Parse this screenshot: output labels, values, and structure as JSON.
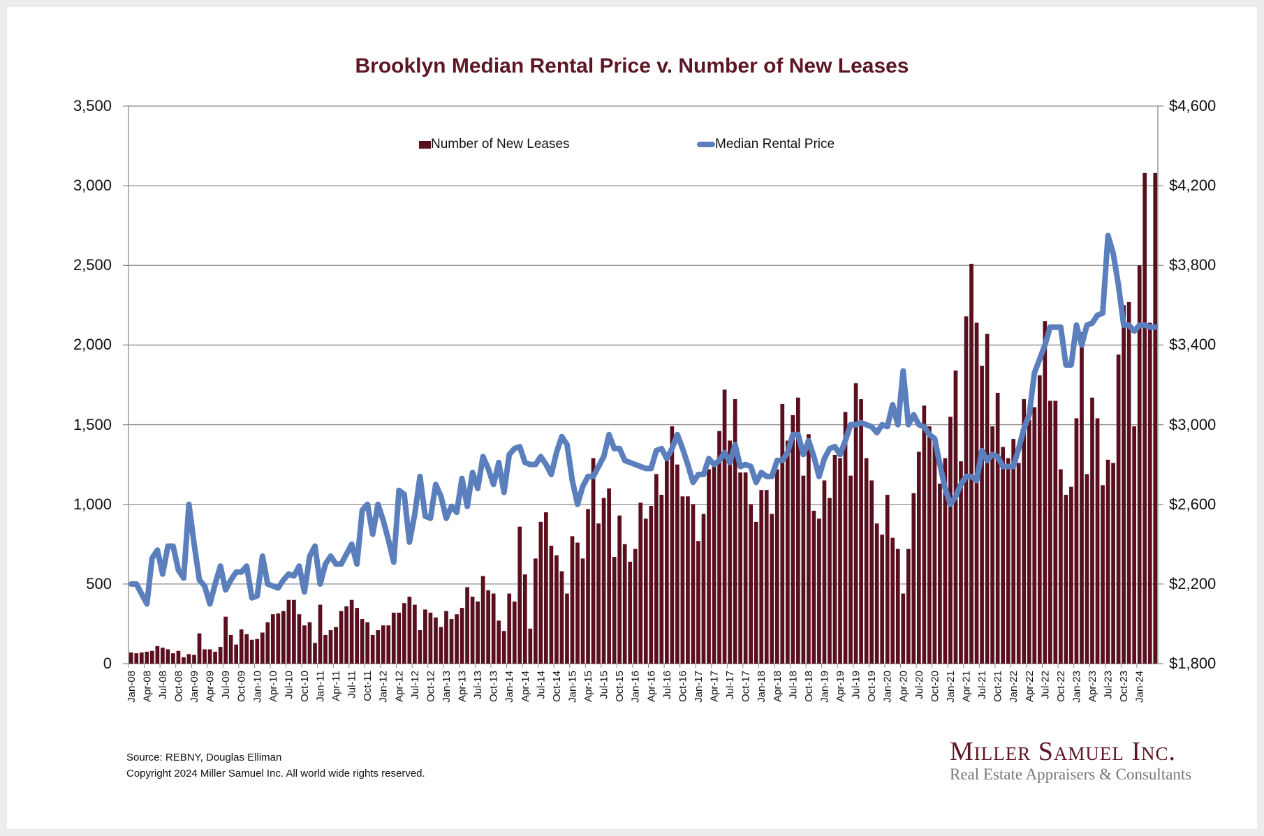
{
  "chart_data": {
    "type": "bar+line",
    "title": "Brooklyn Median Rental Price v. Number of New Leases",
    "legend": [
      "Number of New Leases",
      "Median Rental Price"
    ],
    "legend_position": "top-center",
    "colors": {
      "bars": "#5a0f1f",
      "line": "#5b7fbd",
      "title": "#5c1624"
    },
    "left_axis": {
      "min": 0,
      "max": 3500,
      "ticks": [
        "0",
        "500",
        "1,000",
        "1,500",
        "2,000",
        "2,500",
        "3,000",
        "3,500"
      ]
    },
    "right_axis": {
      "min": 1800,
      "max": 4600,
      "ticks": [
        "$1,800",
        "$2,200",
        "$2,600",
        "$3,000",
        "$3,400",
        "$3,800",
        "$4,200",
        "$4,600"
      ]
    },
    "x_start": "Jan-08",
    "x_tick_labels": [
      "Jan-08",
      "Apr-08",
      "Jul-08",
      "Oct-08",
      "Jan-09",
      "Apr-09",
      "Jul-09",
      "Oct-09",
      "Jan-10",
      "Apr-10",
      "Jul-10",
      "Oct-10",
      "Jan-11",
      "Apr-11",
      "Jul-11",
      "Oct-11",
      "Jan-12",
      "Apr-12",
      "Jul-12",
      "Oct-12",
      "Jan-13",
      "Apr-13",
      "Jul-13",
      "Oct-13",
      "Jan-14",
      "Apr-14",
      "Jul-14",
      "Oct-14",
      "Jan-15",
      "Apr-15",
      "Jul-15",
      "Oct-15",
      "Jan-16",
      "Apr-16",
      "Jul-16",
      "Oct-16",
      "Jan-17",
      "Apr-17",
      "Jul-17",
      "Oct-17",
      "Jan-18",
      "Apr-18",
      "Jul-18",
      "Oct-18",
      "Jan-19",
      "Apr-19",
      "Jul-19",
      "Oct-19",
      "Jan-20",
      "Apr-20",
      "Jul-20",
      "Oct-20",
      "Jan-21",
      "Apr-21",
      "Jul-21",
      "Oct-21",
      "Jan-22",
      "Apr-22",
      "Jul-22",
      "Oct-22",
      "Jan-23",
      "Apr-23",
      "Jul-23",
      "Oct-23",
      "Jan-24"
    ],
    "series": [
      {
        "name": "Number of New Leases",
        "type": "bar",
        "axis": "left",
        "values": [
          70,
          65,
          70,
          75,
          80,
          110,
          100,
          90,
          65,
          80,
          40,
          60,
          55,
          190,
          90,
          90,
          75,
          105,
          295,
          180,
          120,
          215,
          185,
          150,
          155,
          195,
          260,
          310,
          315,
          330,
          400,
          400,
          310,
          240,
          260,
          130,
          370,
          180,
          210,
          230,
          330,
          360,
          400,
          350,
          280,
          260,
          180,
          210,
          240,
          240,
          320,
          320,
          380,
          420,
          370,
          210,
          340,
          320,
          290,
          230,
          330,
          280,
          310,
          350,
          480,
          420,
          390,
          550,
          460,
          440,
          270,
          205,
          440,
          390,
          860,
          560,
          220,
          660,
          890,
          950,
          740,
          680,
          580,
          440,
          800,
          760,
          660,
          970,
          1290,
          880,
          1040,
          1100,
          670,
          930,
          750,
          640,
          720,
          1010,
          910,
          990,
          1190,
          1060,
          1290,
          1490,
          1250,
          1050,
          1050,
          1000,
          770,
          940,
          1220,
          1240,
          1460,
          1720,
          1400,
          1660,
          1200,
          1200,
          1000,
          890,
          1090,
          1090,
          940,
          1220,
          1630,
          1400,
          1560,
          1670,
          1180,
          1440,
          960,
          910,
          1150,
          1040,
          1310,
          1290,
          1580,
          1180,
          1760,
          1660,
          1290,
          1150,
          880,
          810,
          1060,
          790,
          720,
          440,
          720,
          1070,
          1330,
          1620,
          1490,
          1400,
          1130,
          1290,
          1550,
          1840,
          1270,
          2180,
          2510,
          2140,
          1870,
          2070,
          1490,
          1700,
          1360,
          1290,
          1410,
          1260,
          1660,
          1530,
          1610,
          1810,
          2150,
          1650,
          1650,
          1220,
          1060,
          1110,
          1540,
          2080,
          1190,
          1670,
          1540,
          1120,
          1280,
          1260,
          1940,
          2250,
          2270,
          1490,
          2500,
          3080,
          2140,
          3080
        ]
      },
      {
        "name": "Median Rental Price",
        "type": "line",
        "axis": "right",
        "values": [
          2200,
          2200,
          2150,
          2100,
          2330,
          2370,
          2250,
          2390,
          2390,
          2270,
          2230,
          2600,
          2400,
          2220,
          2190,
          2100,
          2200,
          2290,
          2170,
          2220,
          2260,
          2260,
          2290,
          2130,
          2140,
          2340,
          2200,
          2190,
          2180,
          2220,
          2250,
          2240,
          2290,
          2160,
          2340,
          2390,
          2200,
          2300,
          2340,
          2300,
          2300,
          2350,
          2400,
          2300,
          2570,
          2600,
          2450,
          2600,
          2520,
          2420,
          2310,
          2670,
          2650,
          2410,
          2550,
          2740,
          2540,
          2530,
          2700,
          2640,
          2530,
          2590,
          2560,
          2730,
          2590,
          2760,
          2680,
          2840,
          2780,
          2700,
          2810,
          2660,
          2850,
          2880,
          2890,
          2810,
          2800,
          2800,
          2840,
          2800,
          2750,
          2860,
          2940,
          2900,
          2720,
          2600,
          2690,
          2740,
          2740,
          2790,
          2840,
          2950,
          2880,
          2880,
          2820,
          2810,
          2800,
          2790,
          2780,
          2780,
          2870,
          2880,
          2830,
          2880,
          2950,
          2880,
          2800,
          2710,
          2750,
          2750,
          2830,
          2800,
          2820,
          2860,
          2810,
          2900,
          2790,
          2800,
          2790,
          2710,
          2760,
          2740,
          2740,
          2820,
          2820,
          2860,
          2950,
          2950,
          2850,
          2920,
          2840,
          2740,
          2830,
          2880,
          2890,
          2850,
          2920,
          3000,
          3000,
          3010,
          3000,
          2990,
          2960,
          3000,
          2990,
          3100,
          3000,
          3270,
          3000,
          3050,
          3000,
          2990,
          2950,
          2930,
          2800,
          2680,
          2600,
          2640,
          2700,
          2740,
          2740,
          2720,
          2870,
          2820,
          2850,
          2840,
          2790,
          2790,
          2790,
          2880,
          2980,
          3050,
          3260,
          3330,
          3400,
          3490,
          3490,
          3490,
          3300,
          3300,
          3500,
          3400,
          3500,
          3510,
          3550,
          3560,
          3950,
          3860,
          3700,
          3500,
          3500,
          3470,
          3500,
          3500,
          3490,
          3490
        ]
      }
    ]
  },
  "footer": {
    "source": "Source: REBNY, Douglas Elliman",
    "copyright": "Copyright 2024 Miller Samuel Inc.  All world wide rights reserved."
  },
  "logo": {
    "name": "Miller Samuel Inc.",
    "tagline": "Real Estate Appraisers & Consultants"
  }
}
